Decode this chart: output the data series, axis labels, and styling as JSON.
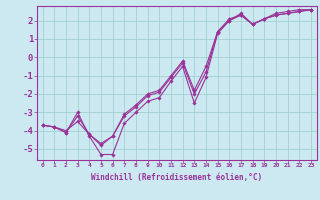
{
  "xlabel": "Windchill (Refroidissement éolien,°C)",
  "bg_color": "#cce8f0",
  "line_color": "#993399",
  "grid_color": "#99cccc",
  "border_color": "#993399",
  "xlim": [
    -0.5,
    23.5
  ],
  "ylim": [
    -5.6,
    2.8
  ],
  "xticks": [
    0,
    1,
    2,
    3,
    4,
    5,
    6,
    7,
    8,
    9,
    10,
    11,
    12,
    13,
    14,
    15,
    16,
    17,
    18,
    19,
    20,
    21,
    22,
    23
  ],
  "yticks": [
    -5,
    -4,
    -3,
    -2,
    -1,
    0,
    1,
    2
  ],
  "series": [
    {
      "x": [
        0,
        1,
        2,
        3,
        4,
        5,
        6,
        7,
        8,
        9,
        10,
        11,
        12,
        13,
        14,
        15,
        16,
        17,
        18,
        19,
        20,
        21,
        22,
        23
      ],
      "y": [
        -3.7,
        -3.8,
        -4.1,
        -3.0,
        -4.3,
        -5.3,
        -5.3,
        -3.6,
        -3.0,
        -2.4,
        -2.2,
        -1.3,
        -0.5,
        -2.5,
        -1.1,
        1.3,
        2.0,
        2.4,
        1.8,
        2.1,
        2.4,
        2.5,
        2.6,
        2.6
      ]
    },
    {
      "x": [
        0,
        1,
        2,
        3,
        4,
        5,
        6,
        7,
        8,
        9,
        10,
        11,
        12,
        13,
        14,
        15,
        16,
        17,
        18,
        19,
        20,
        21,
        22,
        23
      ],
      "y": [
        -3.7,
        -3.8,
        -4.1,
        -3.2,
        -4.2,
        -4.8,
        -4.3,
        -3.2,
        -2.7,
        -2.1,
        -1.9,
        -1.1,
        -0.3,
        -2.0,
        -0.8,
        1.4,
        2.0,
        2.3,
        1.8,
        2.1,
        2.3,
        2.4,
        2.5,
        2.6
      ]
    },
    {
      "x": [
        0,
        1,
        2,
        3,
        4,
        5,
        6,
        7,
        8,
        9,
        10,
        11,
        12,
        13,
        14,
        15,
        16,
        17,
        18,
        19,
        20,
        21,
        22,
        23
      ],
      "y": [
        -3.7,
        -3.8,
        -4.0,
        -3.5,
        -4.2,
        -4.7,
        -4.3,
        -3.1,
        -2.6,
        -2.0,
        -1.8,
        -1.0,
        -0.2,
        -1.8,
        -0.5,
        1.4,
        2.1,
        2.3,
        1.8,
        2.1,
        2.3,
        2.4,
        2.5,
        2.6
      ]
    }
  ]
}
